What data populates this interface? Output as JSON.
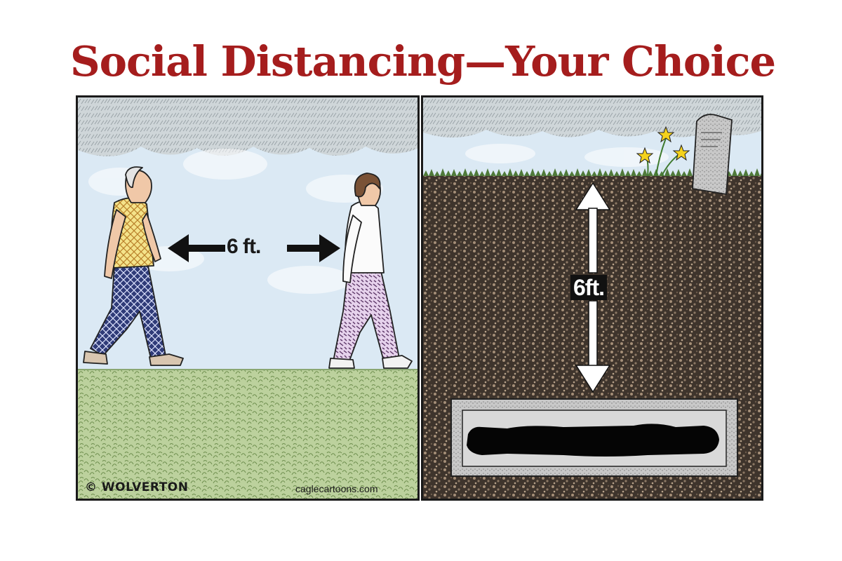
{
  "title": "Social Distancing—Your Choice",
  "colors": {
    "title": "#a51d1d",
    "sky": "#d8e8f4",
    "grass": "#b9cf9a",
    "soil": "#4a3d33",
    "arrow_left": "#111111",
    "arrow_right": "#ffffff"
  },
  "left_panel": {
    "distance_label": "6 ft.",
    "signature": "© WOLVERTON",
    "source": "caglecartoons.com"
  },
  "right_panel": {
    "distance_label": "6ft."
  }
}
